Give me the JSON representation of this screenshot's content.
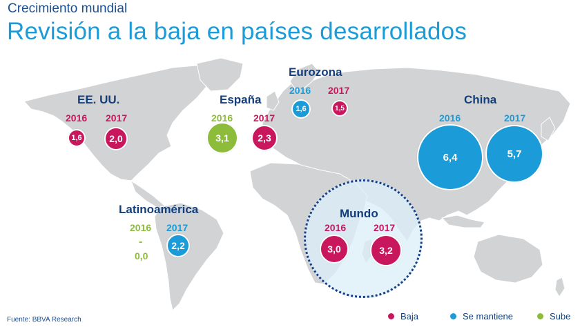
{
  "header": {
    "subtitle": "Crecimiento mundial",
    "title": "Revisión a la baja en países desarrollados"
  },
  "colors": {
    "baja": "#c8175d",
    "mantiene": "#1b9bd7",
    "sube": "#8cbc3a",
    "map": "#d2d3d4"
  },
  "regions": {
    "eeuu": {
      "name": "EE. UU.",
      "y2016": "2016",
      "v2016": "1,6",
      "y2017": "2017",
      "v2017": "2,0"
    },
    "espana": {
      "name": "España",
      "y2016": "2016",
      "v2016": "3,1",
      "y2017": "2017",
      "v2017": "2,3"
    },
    "eurozona": {
      "name": "Eurozona",
      "y2016": "2016",
      "v2016": "1,6",
      "y2017": "2017",
      "v2017": "1,5"
    },
    "china": {
      "name": "China",
      "y2016": "2016",
      "v2016": "6,4",
      "y2017": "2017",
      "v2017": "5,7"
    },
    "latam": {
      "name": "Latinoamérica",
      "y2016": "2016",
      "dash2016": "-",
      "v2016": "0,0",
      "y2017": "2017",
      "v2017": "2,2"
    },
    "mundo": {
      "name": "Mundo",
      "y2016": "2016",
      "v2016": "3,0",
      "y2017": "2017",
      "v2017": "3,2"
    }
  },
  "legend": [
    {
      "label": "Baja"
    },
    {
      "label": "Se mantiene"
    },
    {
      "label": "Sube"
    }
  ],
  "footer": {
    "source": "Fuente: BBVA Research"
  }
}
